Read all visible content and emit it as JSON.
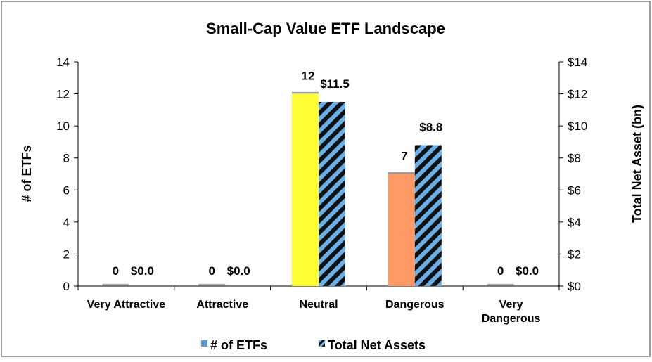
{
  "chart_data": {
    "type": "bar",
    "title": "Small-Cap Value ETF Landscape",
    "categories": [
      "Very Attractive",
      "Attractive",
      "Neutral",
      "Dangerous",
      "Very Dangerous"
    ],
    "category_lines": [
      [
        "Very Attractive"
      ],
      [
        "Attractive"
      ],
      [
        "Neutral"
      ],
      [
        "Dangerous"
      ],
      [
        "Very",
        "Dangerous"
      ]
    ],
    "series": [
      {
        "name": "# of ETFs",
        "axis": "left",
        "values": [
          0,
          0,
          12,
          7,
          0
        ],
        "value_labels": [
          "0",
          "0",
          "12",
          "7",
          "0"
        ],
        "colors": [
          "#5b9bd5",
          "#5b9bd5",
          "#ffff33",
          "#ff9966",
          "#5b9bd5"
        ]
      },
      {
        "name": "Total Net Assets",
        "axis": "right",
        "values": [
          0.0,
          0.0,
          11.5,
          8.8,
          0.0
        ],
        "value_labels": [
          "$0.0",
          "$0.0",
          "$11.5",
          "$8.8",
          "$0.0"
        ],
        "pattern": "blue-black-diagonal-stripes"
      }
    ],
    "ylabel": "# of ETFs",
    "y2label": "Total Net Asset (bn)",
    "ylim": [
      0,
      14
    ],
    "y2lim": [
      0,
      14
    ],
    "yticks": [
      "0",
      "2",
      "4",
      "6",
      "8",
      "10",
      "12",
      "14"
    ],
    "y2ticks": [
      "$0",
      "$2",
      "$4",
      "$6",
      "$8",
      "$10",
      "$12",
      "$14"
    ],
    "legend_position": "bottom",
    "grid": false
  },
  "colors": {
    "stripe_blue": "#6aaeea",
    "stripe_black": "#111111",
    "legend_blue": "#5b9bd5",
    "border": "#7f7f7f"
  }
}
